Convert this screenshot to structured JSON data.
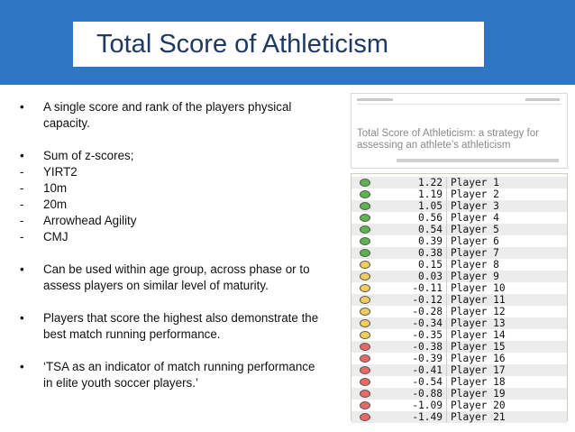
{
  "slide": {
    "title": "Total Score of Athleticism"
  },
  "bullets": [
    {
      "marker": "•",
      "text": "A single score and rank of the players physical capacity.",
      "gap_after": true
    },
    {
      "marker": "•",
      "text": "Sum of z-scores;",
      "gap_after": false
    },
    {
      "marker": "-",
      "text": "YIRT2",
      "gap_after": false
    },
    {
      "marker": "-",
      "text": "10m",
      "gap_after": false
    },
    {
      "marker": "-",
      "text": "20m",
      "gap_after": false
    },
    {
      "marker": "-",
      "text": "Arrowhead Agility",
      "gap_after": false
    },
    {
      "marker": "-",
      "text": "CMJ",
      "gap_after": true
    },
    {
      "marker": "•",
      "text": "Can be used within age group, across phase or to assess players on similar level of maturity.",
      "gap_after": true
    },
    {
      "marker": "•",
      "text": "Players that score the highest also demonstrate the best match running performance.",
      "gap_after": true
    },
    {
      "marker": "•",
      "text": "‘TSA as an indicator of match running performance in elite youth soccer players.’",
      "gap_after": false
    }
  ],
  "paper": {
    "title": "Total Score of Athleticism: a strategy for assessing an athlete’s athleticism"
  },
  "colors": {
    "green": "#5db34f",
    "amber": "#f2cc5e",
    "red": "#e86a67",
    "row_bg": "#ececec"
  },
  "ranking": [
    {
      "value": "1.22",
      "player": "Player 1",
      "status": "green"
    },
    {
      "value": "1.19",
      "player": "Player 2",
      "status": "green"
    },
    {
      "value": "1.05",
      "player": "Player 3",
      "status": "green"
    },
    {
      "value": "0.56",
      "player": "Player 4",
      "status": "green"
    },
    {
      "value": "0.54",
      "player": "Player 5",
      "status": "green"
    },
    {
      "value": "0.39",
      "player": "Player 6",
      "status": "green"
    },
    {
      "value": "0.38",
      "player": "Player 7",
      "status": "green"
    },
    {
      "value": "0.15",
      "player": "Player 8",
      "status": "amber"
    },
    {
      "value": "0.03",
      "player": "Player 9",
      "status": "amber"
    },
    {
      "value": "-0.11",
      "player": "Player 10",
      "status": "amber"
    },
    {
      "value": "-0.12",
      "player": "Player 11",
      "status": "amber"
    },
    {
      "value": "-0.28",
      "player": "Player 12",
      "status": "amber"
    },
    {
      "value": "-0.34",
      "player": "Player 13",
      "status": "amber"
    },
    {
      "value": "-0.35",
      "player": "Player 14",
      "status": "amber"
    },
    {
      "value": "-0.38",
      "player": "Player 15",
      "status": "red"
    },
    {
      "value": "-0.39",
      "player": "Player 16",
      "status": "red"
    },
    {
      "value": "-0.41",
      "player": "Player 17",
      "status": "red"
    },
    {
      "value": "-0.54",
      "player": "Player 18",
      "status": "red"
    },
    {
      "value": "-0.88",
      "player": "Player 19",
      "status": "red"
    },
    {
      "value": "-1.09",
      "player": "Player 20",
      "status": "red"
    },
    {
      "value": "-1.49",
      "player": "Player 21",
      "status": "red"
    }
  ]
}
